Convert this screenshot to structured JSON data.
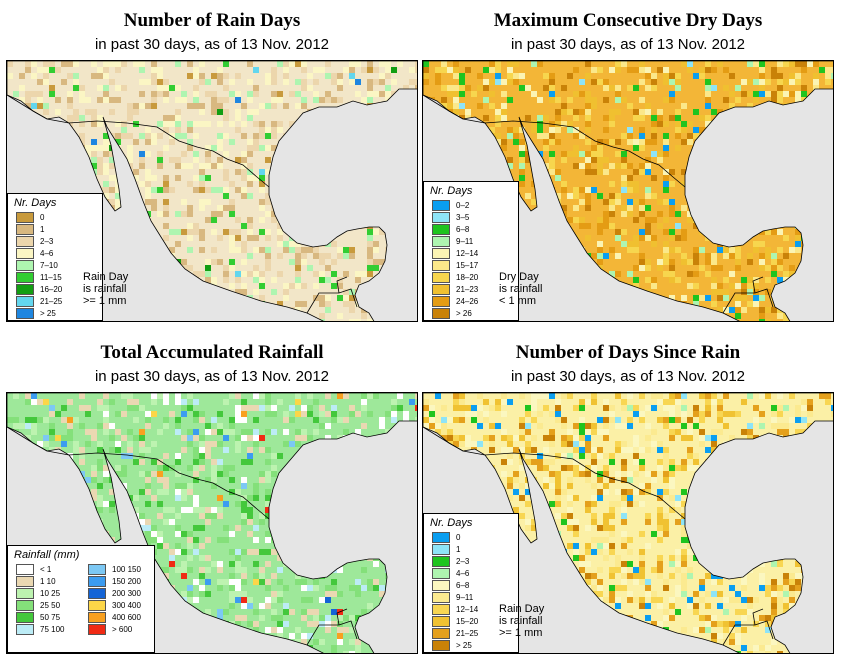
{
  "subtitle": "in past 30 days, as of  13 Nov. 2012",
  "panels": [
    {
      "id": "rain-days",
      "title": "Number of Rain Days",
      "legend_title": "Nr. Days",
      "note": [
        "Rain Day",
        "is rainfall",
        ">= 1 mm"
      ],
      "base_color": "#f2e6c8",
      "classes": [
        {
          "label": "0",
          "color": "#c89a3c"
        },
        {
          "label": "1",
          "color": "#d8b880"
        },
        {
          "label": "2–3",
          "color": "#ecd6ac"
        },
        {
          "label": "4–6",
          "color": "#fbf6c4"
        },
        {
          "label": "7–10",
          "color": "#aef5b0"
        },
        {
          "label": "11–15",
          "color": "#32cd32"
        },
        {
          "label": "16–20",
          "color": "#129e12"
        },
        {
          "label": "21–25",
          "color": "#63d6ee"
        },
        {
          "label": "> 25",
          "color": "#1e86e0"
        }
      ]
    },
    {
      "id": "dry-days",
      "title": "Maximum Consecutive Dry Days",
      "legend_title": "Nr. Days",
      "note": [
        "Dry Day",
        "is rainfall",
        "< 1 mm"
      ],
      "base_color": "#f3b637",
      "classes": [
        {
          "label": "0–2",
          "color": "#0a9ef0"
        },
        {
          "label": "3–5",
          "color": "#8ee4f7"
        },
        {
          "label": "6–8",
          "color": "#1fc41f"
        },
        {
          "label": "9–11",
          "color": "#aef5b0"
        },
        {
          "label": "12–14",
          "color": "#fbf4b4"
        },
        {
          "label": "15–17",
          "color": "#fbe88a"
        },
        {
          "label": "18–20",
          "color": "#f7d64e"
        },
        {
          "label": "21–23",
          "color": "#f0c030"
        },
        {
          "label": "24–26",
          "color": "#e49c14"
        },
        {
          "label": "> 26",
          "color": "#c98208"
        }
      ]
    },
    {
      "id": "total-rainfall",
      "title": "Total Accumulated Rainfall",
      "legend_title": "Rainfall (mm)",
      "note": [],
      "base_color": "#9ee89a",
      "classes_left": [
        {
          "label": "< 1",
          "color": "#ffffff"
        },
        {
          "label": "1  10",
          "color": "#ead8b2"
        },
        {
          "label": "10  25",
          "color": "#bdf3b0"
        },
        {
          "label": "25  50",
          "color": "#84e07a"
        },
        {
          "label": "50  75",
          "color": "#44c83c"
        },
        {
          "label": "75  100",
          "color": "#bcecf6"
        }
      ],
      "classes_right": [
        {
          "label": "100  150",
          "color": "#7cc8f4"
        },
        {
          "label": "150  200",
          "color": "#3c9cf0"
        },
        {
          "label": "200  300",
          "color": "#1464d6"
        },
        {
          "label": "300  400",
          "color": "#fcd648"
        },
        {
          "label": "400  600",
          "color": "#f8a020"
        },
        {
          "label": "> 600",
          "color": "#f02a14"
        }
      ]
    },
    {
      "id": "days-since-rain",
      "title": "Number of Days Since Rain",
      "legend_title": "Nr. Days",
      "note": [
        "Rain Day",
        "is rainfall",
        ">= 1 mm"
      ],
      "base_color": "#fbf0a6",
      "classes": [
        {
          "label": "0",
          "color": "#0a9ef0"
        },
        {
          "label": "1",
          "color": "#8ee4f7"
        },
        {
          "label": "2–3",
          "color": "#1fc41f"
        },
        {
          "label": "4–6",
          "color": "#aef5b0"
        },
        {
          "label": "6–8",
          "color": "#fbf7c0"
        },
        {
          "label": "9–11",
          "color": "#fbea90"
        },
        {
          "label": "12–14",
          "color": "#f8d652"
        },
        {
          "label": "15–20",
          "color": "#f0c232"
        },
        {
          "label": "21–25",
          "color": "#e4a01c"
        },
        {
          "label": "> 25",
          "color": "#c98208"
        }
      ]
    }
  ]
}
